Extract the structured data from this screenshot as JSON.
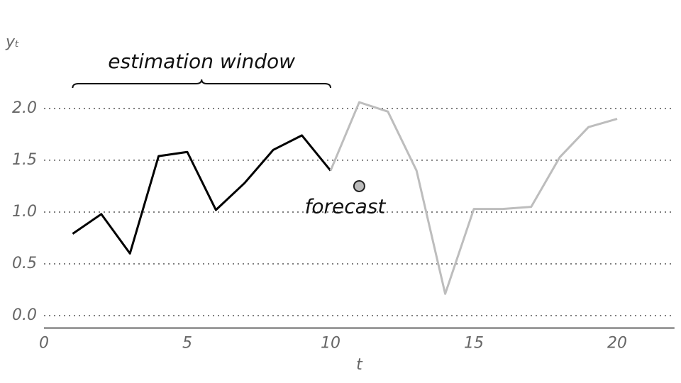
{
  "chart_data": {
    "type": "line",
    "xlabel": "t",
    "ylabel": "yₜ",
    "xlim": [
      0,
      22
    ],
    "ylim": [
      -0.12,
      2.65
    ],
    "xticks": [
      0,
      5,
      10,
      15,
      20
    ],
    "yticks": [
      {
        "value": 0,
        "label": "0.0"
      },
      0.5,
      {
        "value": 1,
        "label": "1.0"
      },
      1.5,
      {
        "value": 2,
        "label": "2.0"
      }
    ],
    "grid": true,
    "series": [
      {
        "color": "#000000",
        "x": [
          1,
          2,
          3,
          4,
          5,
          6,
          7,
          8,
          9,
          10
        ],
        "values": [
          0.79,
          0.98,
          0.6,
          1.54,
          1.58,
          1.02,
          1.28,
          1.6,
          1.74,
          1.4
        ]
      },
      {
        "color": "#bdbdbd",
        "x": [
          10,
          11,
          12,
          13,
          14,
          15,
          16,
          17,
          18,
          19,
          20
        ],
        "values": [
          1.4,
          2.06,
          1.97,
          1.4,
          0.21,
          1.03,
          1.03,
          1.05,
          1.53,
          1.82,
          1.9
        ]
      }
    ],
    "window": {
      "text": "estimation window",
      "x": [
        1,
        10
      ]
    },
    "forecast": {
      "text": "forecast",
      "x": 11,
      "y": 1.25,
      "color": "#bbbbbb"
    }
  }
}
